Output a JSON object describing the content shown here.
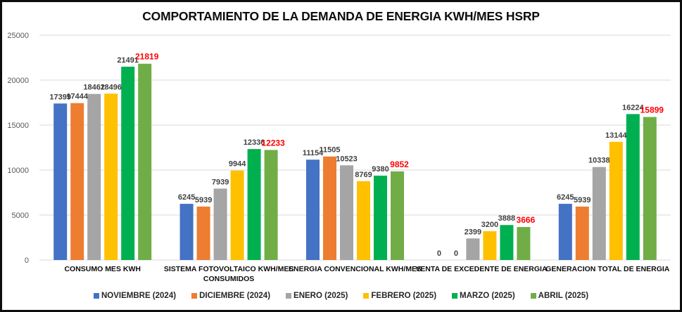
{
  "chart_data": {
    "type": "bar",
    "title": "COMPORTAMIENTO DE LA DEMANDA DE ENERGIA  KWH/MES HSRP",
    "xlabel": "",
    "ylabel": "",
    "ylim": [
      0,
      25000
    ],
    "yticks": [
      0,
      5000,
      10000,
      15000,
      20000,
      25000
    ],
    "grid": true,
    "legend_position": "bottom",
    "categories": [
      [
        "CONSUMO MES KWH"
      ],
      [
        "SISTEMA FOTOVOLTAICO KWH/MES",
        "CONSUMIDOS"
      ],
      [
        "ENERGIA CONVENCIONAL KWH/MES"
      ],
      [
        "VENTA DE EXCEDENTE DE ENERGIA"
      ],
      [
        "GENERACION TOTAL DE ENERGIA"
      ]
    ],
    "series": [
      {
        "name": "NOVIEMBRE (2024)",
        "color": "#4472c4",
        "label_color": "#404040",
        "values": [
          17399,
          6245,
          11154,
          0,
          6245
        ]
      },
      {
        "name": "DICIEMBRE (2024)",
        "color": "#ed7d31",
        "label_color": "#404040",
        "values": [
          17444,
          5939,
          11505,
          0,
          5939
        ]
      },
      {
        "name": "ENERO (2025)",
        "color": "#a5a5a5",
        "label_color": "#404040",
        "values": [
          18462,
          7939,
          10523,
          2399,
          10338
        ]
      },
      {
        "name": "FEBRERO (2025)",
        "color": "#ffc000",
        "label_color": "#404040",
        "values": [
          18496,
          9944,
          8769,
          3200,
          13144
        ]
      },
      {
        "name": "MARZO (2025)",
        "color": "#00b050",
        "label_color": "#404040",
        "values": [
          21491,
          12336,
          9380,
          3888,
          16224
        ]
      },
      {
        "name": "ABRIL (2025)",
        "color": "#70ad47",
        "label_color": "#ff0000",
        "values": [
          21819,
          12233,
          9852,
          3666,
          15899
        ]
      }
    ]
  },
  "colors": {
    "gridline": "#d9d9d9",
    "axis_text": "#595959",
    "category_text": "#0d0d0d",
    "highlight_label": "#ff0000"
  }
}
